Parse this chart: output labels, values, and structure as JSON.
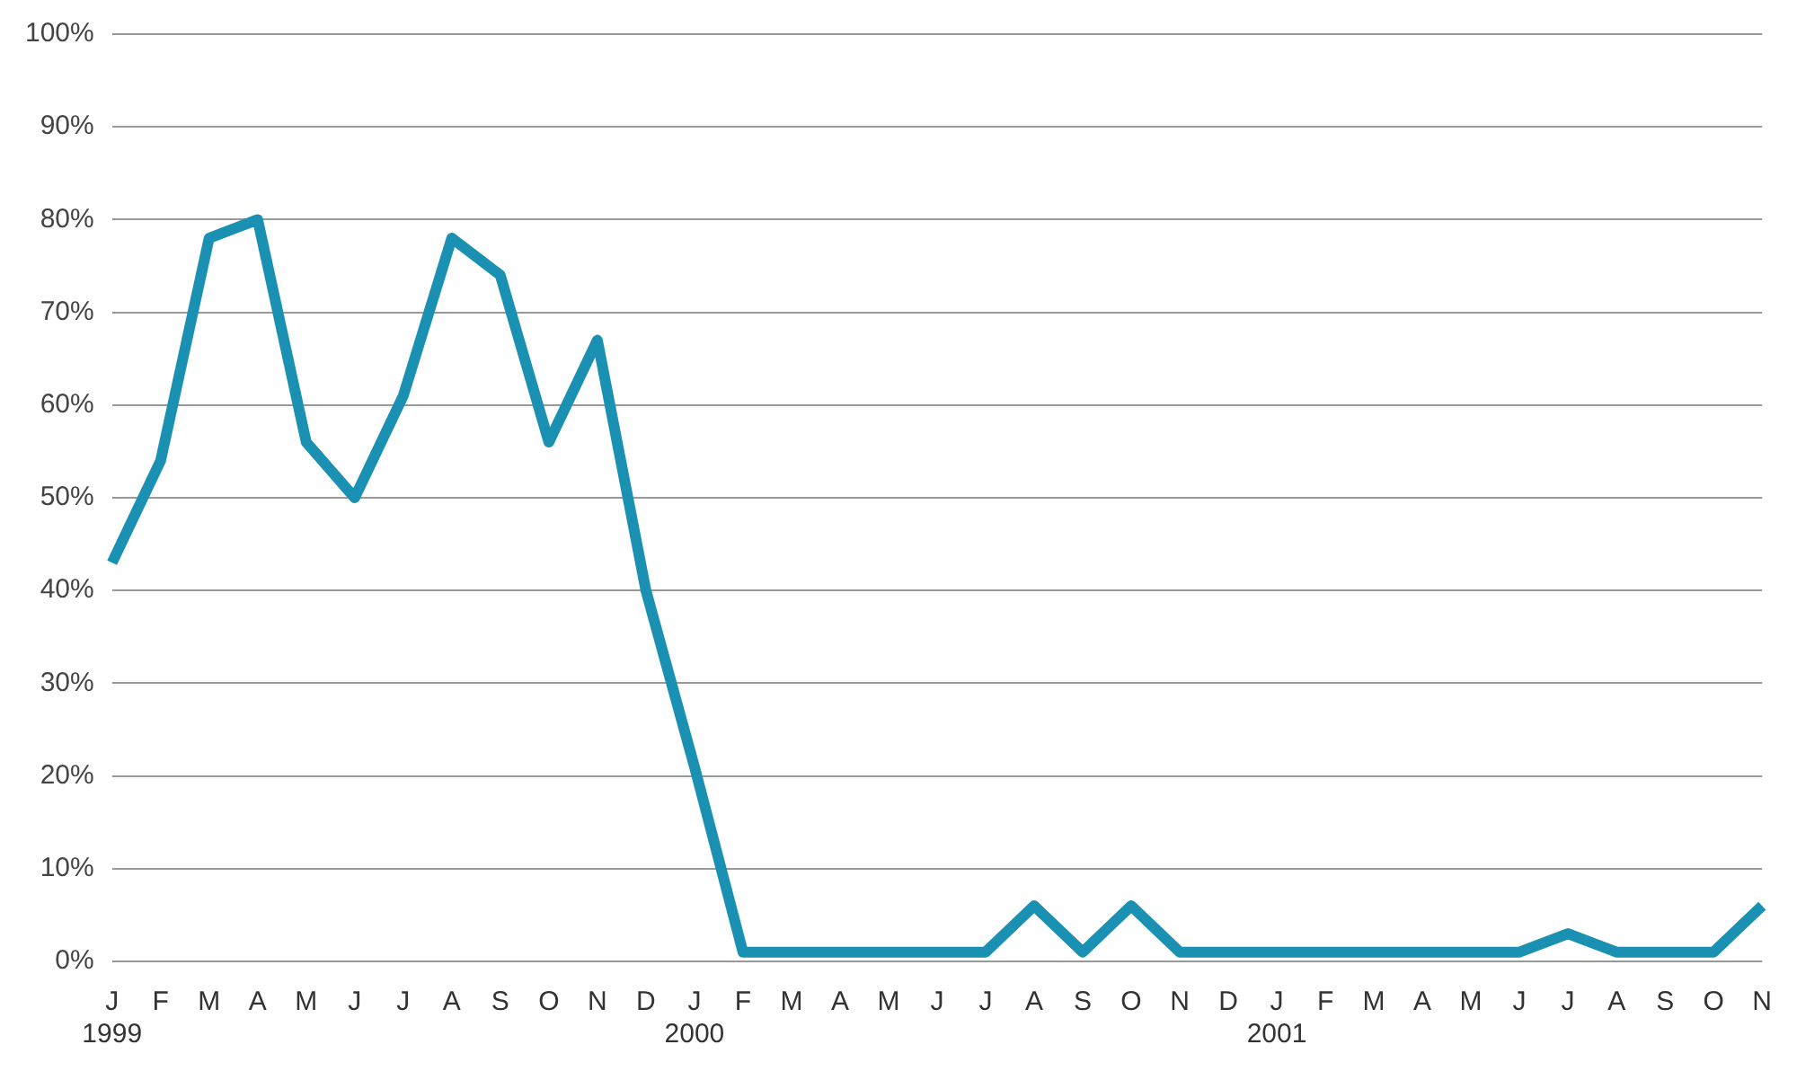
{
  "chart_data": {
    "type": "line",
    "categories": [
      "J\n1999",
      "F",
      "M",
      "A",
      "M",
      "J",
      "J",
      "A",
      "S",
      "O",
      "N",
      "D",
      "J\n2000",
      "F",
      "M",
      "A",
      "M",
      "J",
      "J",
      "A",
      "S",
      "O",
      "N",
      "D",
      "J\n2001",
      "F",
      "M",
      "A",
      "M",
      "J",
      "J",
      "A",
      "S",
      "O",
      "N"
    ],
    "series": [
      {
        "color": "#1a90b3",
        "values": [
          43,
          54,
          78,
          80,
          56,
          50,
          61,
          78,
          74,
          56,
          67,
          40,
          21,
          1,
          1,
          1,
          1,
          1,
          1,
          6,
          1,
          6,
          1,
          1,
          1,
          1,
          1,
          1,
          1,
          1,
          3,
          1,
          1,
          1,
          6
        ]
      }
    ],
    "ylim": [
      0,
      100
    ],
    "yticks": [
      {
        "value": 0,
        "label": "0%"
      },
      {
        "value": 10,
        "label": "10%"
      },
      {
        "value": 20,
        "label": "20%"
      },
      {
        "value": 30,
        "label": "30%"
      },
      {
        "value": 40,
        "label": "40%"
      },
      {
        "value": 50,
        "label": "50%"
      },
      {
        "value": 60,
        "label": "60%"
      },
      {
        "value": 70,
        "label": "70%"
      },
      {
        "value": 80,
        "label": "80%"
      },
      {
        "value": 90,
        "label": "90%"
      },
      {
        "value": 100,
        "label": "100%"
      }
    ],
    "grid": "y",
    "legend": false,
    "marker": "none",
    "line_style": "solid"
  }
}
